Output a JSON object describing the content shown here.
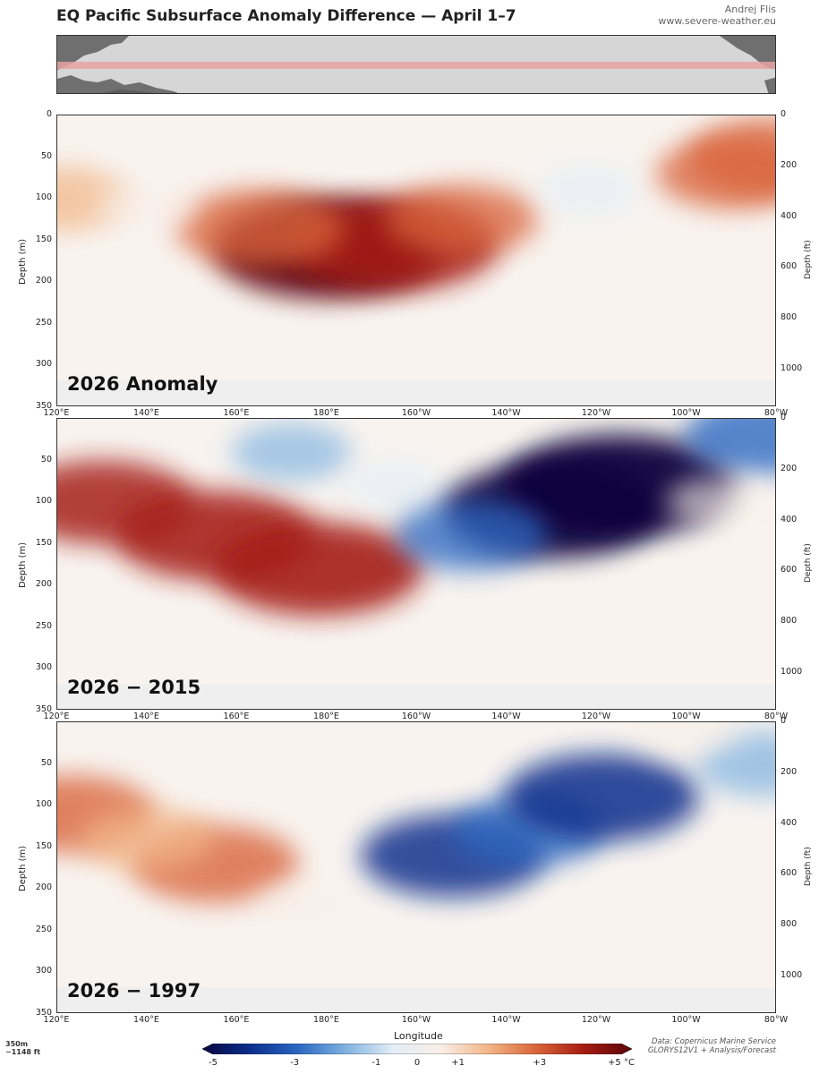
{
  "header": {
    "title": "EQ Pacific Subsurface Anomaly Difference — April 1–7",
    "author": "Andrej Flis",
    "website": "www.severe-weather.eu"
  },
  "footer": {
    "depth_note_1": "350m",
    "depth_note_2": "~1148 ft",
    "source_1": "Data: Copernicus Marine Service",
    "source_2": "GLORYS12V1 + Analysis/Forecast",
    "xlabel": "Longitude"
  },
  "colorbar": {
    "ticks": [
      "-5",
      "-3",
      "-1",
      "0",
      "+1",
      "+3",
      "+5 °C"
    ],
    "tick_values": [
      -5,
      -3,
      -1,
      0,
      1,
      3,
      5
    ],
    "range": [
      -5,
      5
    ],
    "colors": [
      "#08053e",
      "#0b2f8c",
      "#2b67c2",
      "#7fb2e0",
      "#e4eef7",
      "#f9efe8",
      "#f2b585",
      "#d9643a",
      "#a51b12",
      "#5a0508"
    ]
  },
  "axes": {
    "y_ticks": [
      "0",
      "50",
      "100",
      "150",
      "200",
      "250",
      "300",
      "350"
    ],
    "y_label": "Depth (m)",
    "y2_ticks": [
      "0",
      "200",
      "400",
      "600",
      "800",
      "1000"
    ],
    "y2_label": "Depth (ft)",
    "x_ticks": [
      "120°E",
      "140°E",
      "160°E",
      "180°E",
      "160°W",
      "140°W",
      "120°W",
      "100°W",
      "80°W"
    ]
  },
  "chart_data": [
    {
      "type": "heatmap",
      "title": "2026 Anomaly",
      "x": [
        120,
        140,
        160,
        180,
        200,
        220,
        240,
        260,
        280
      ],
      "ylim": [
        350,
        0
      ],
      "units": "°C",
      "features": [
        {
          "lon": 180,
          "depth": 160,
          "value": 4.8
        },
        {
          "lon": 195,
          "depth": 155,
          "value": 4.2
        },
        {
          "lon": 165,
          "depth": 135,
          "value": 3.0
        },
        {
          "lon": 210,
          "depth": 125,
          "value": 2.5
        },
        {
          "lon": 121,
          "depth": 100,
          "value": 2.0
        },
        {
          "lon": 140,
          "depth": 110,
          "value": 1.0
        },
        {
          "lon": 238,
          "depth": 90,
          "value": -1.0
        },
        {
          "lon": 270,
          "depth": 70,
          "value": 2.5
        },
        {
          "lon": 279,
          "depth": 50,
          "value": 3.0
        }
      ]
    },
    {
      "type": "heatmap",
      "title": "2026 − 2015",
      "x": [
        120,
        140,
        160,
        180,
        200,
        220,
        240,
        260,
        280
      ],
      "ylim": [
        350,
        0
      ],
      "units": "°C",
      "features": [
        {
          "lon": 130,
          "depth": 100,
          "value": 3.5
        },
        {
          "lon": 155,
          "depth": 140,
          "value": 4.0
        },
        {
          "lon": 178,
          "depth": 180,
          "value": 4.3
        },
        {
          "lon": 172,
          "depth": 40,
          "value": -1.5
        },
        {
          "lon": 195,
          "depth": 80,
          "value": -1.0
        },
        {
          "lon": 230,
          "depth": 110,
          "value": -4.5
        },
        {
          "lon": 245,
          "depth": 80,
          "value": -5.0
        },
        {
          "lon": 212,
          "depth": 140,
          "value": -2.5
        },
        {
          "lon": 278,
          "depth": 20,
          "value": -3.0
        },
        {
          "lon": 267,
          "depth": 100,
          "value": 1.0
        }
      ]
    },
    {
      "type": "heatmap",
      "title": "2026 − 1997",
      "x": [
        120,
        140,
        160,
        180,
        200,
        220,
        240,
        260,
        280
      ],
      "ylim": [
        350,
        0
      ],
      "units": "°C",
      "features": [
        {
          "lon": 123,
          "depth": 110,
          "value": 3.0
        },
        {
          "lon": 155,
          "depth": 170,
          "value": 3.0
        },
        {
          "lon": 140,
          "depth": 140,
          "value": 2.0
        },
        {
          "lon": 175,
          "depth": 220,
          "value": 1.0
        },
        {
          "lon": 208,
          "depth": 160,
          "value": -3.5
        },
        {
          "lon": 225,
          "depth": 130,
          "value": -2.5
        },
        {
          "lon": 241,
          "depth": 90,
          "value": -3.8
        },
        {
          "lon": 277,
          "depth": 50,
          "value": -2.0
        },
        {
          "lon": 260,
          "depth": 10,
          "value": 1.0
        }
      ]
    }
  ]
}
